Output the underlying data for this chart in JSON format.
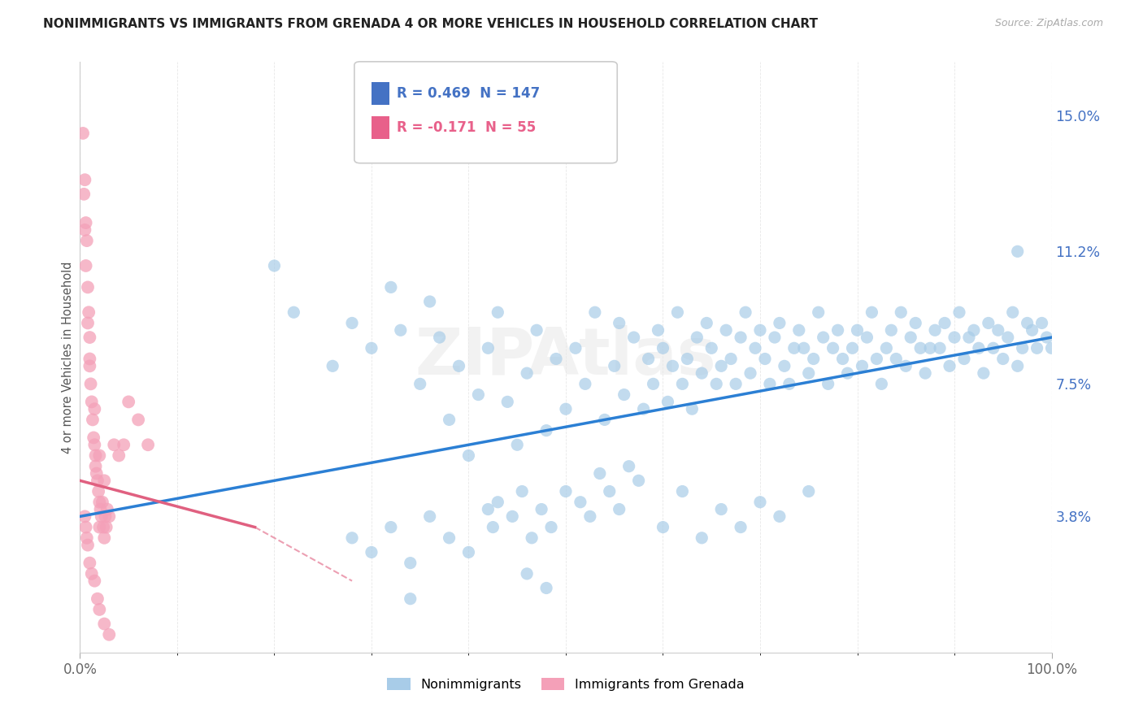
{
  "title": "NONIMMIGRANTS VS IMMIGRANTS FROM GRENADA 4 OR MORE VEHICLES IN HOUSEHOLD CORRELATION CHART",
  "source": "Source: ZipAtlas.com",
  "ylabel": "4 or more Vehicles in Household",
  "xmin": 0.0,
  "xmax": 100.0,
  "ymin": 0.0,
  "ymax": 16.5,
  "right_yticks": [
    3.8,
    7.5,
    11.2,
    15.0
  ],
  "right_yticklabels": [
    "3.8%",
    "7.5%",
    "11.2%",
    "15.0%"
  ],
  "bottom_xticklabels": [
    "0.0%",
    "100.0%"
  ],
  "legend_entries": [
    {
      "label": "Nonimmigrants",
      "color": "#a8cce8"
    },
    {
      "label": "Immigrants from Grenada",
      "color": "#f4a0b8"
    }
  ],
  "corr_R1": "0.469",
  "corr_N1": "147",
  "corr_R2": "-0.171",
  "corr_N2": "55",
  "corr_color1": "#4472c4",
  "corr_color2": "#e8608a",
  "nonimmigrant_color": "#a8cce8",
  "immigrant_color": "#f4a0b8",
  "trend_color_blue": "#2b7fd4",
  "trend_color_pink": "#e06080",
  "blue_trend_x0": 0.0,
  "blue_trend_y0": 3.8,
  "blue_trend_x1": 100.0,
  "blue_trend_y1": 8.8,
  "pink_trend_x0": 0.0,
  "pink_trend_y0": 4.8,
  "pink_trend_x1": 18.0,
  "pink_trend_y1": 3.5,
  "watermark": "ZIPAtlas",
  "grid_color": "#d8d8d8",
  "background_color": "#ffffff",
  "nonimmigrant_points": [
    [
      20.0,
      10.8
    ],
    [
      22.0,
      9.5
    ],
    [
      26.0,
      8.0
    ],
    [
      28.0,
      9.2
    ],
    [
      30.0,
      8.5
    ],
    [
      32.0,
      10.2
    ],
    [
      33.0,
      9.0
    ],
    [
      35.0,
      7.5
    ],
    [
      36.0,
      9.8
    ],
    [
      37.0,
      8.8
    ],
    [
      38.0,
      6.5
    ],
    [
      39.0,
      8.0
    ],
    [
      40.0,
      5.5
    ],
    [
      41.0,
      7.2
    ],
    [
      42.0,
      8.5
    ],
    [
      43.0,
      9.5
    ],
    [
      44.0,
      7.0
    ],
    [
      45.0,
      5.8
    ],
    [
      46.0,
      7.8
    ],
    [
      47.0,
      9.0
    ],
    [
      48.0,
      6.2
    ],
    [
      49.0,
      8.2
    ],
    [
      50.0,
      6.8
    ],
    [
      51.0,
      8.5
    ],
    [
      52.0,
      7.5
    ],
    [
      53.0,
      9.5
    ],
    [
      54.0,
      6.5
    ],
    [
      55.0,
      8.0
    ],
    [
      55.5,
      9.2
    ],
    [
      56.0,
      7.2
    ],
    [
      57.0,
      8.8
    ],
    [
      58.0,
      6.8
    ],
    [
      58.5,
      8.2
    ],
    [
      59.0,
      7.5
    ],
    [
      59.5,
      9.0
    ],
    [
      60.0,
      8.5
    ],
    [
      60.5,
      7.0
    ],
    [
      61.0,
      8.0
    ],
    [
      61.5,
      9.5
    ],
    [
      62.0,
      7.5
    ],
    [
      62.5,
      8.2
    ],
    [
      63.0,
      6.8
    ],
    [
      63.5,
      8.8
    ],
    [
      64.0,
      7.8
    ],
    [
      64.5,
      9.2
    ],
    [
      65.0,
      8.5
    ],
    [
      65.5,
      7.5
    ],
    [
      66.0,
      8.0
    ],
    [
      66.5,
      9.0
    ],
    [
      67.0,
      8.2
    ],
    [
      67.5,
      7.5
    ],
    [
      68.0,
      8.8
    ],
    [
      68.5,
      9.5
    ],
    [
      69.0,
      7.8
    ],
    [
      69.5,
      8.5
    ],
    [
      70.0,
      9.0
    ],
    [
      70.5,
      8.2
    ],
    [
      71.0,
      7.5
    ],
    [
      71.5,
      8.8
    ],
    [
      72.0,
      9.2
    ],
    [
      72.5,
      8.0
    ],
    [
      73.0,
      7.5
    ],
    [
      73.5,
      8.5
    ],
    [
      74.0,
      9.0
    ],
    [
      74.5,
      8.5
    ],
    [
      75.0,
      7.8
    ],
    [
      75.5,
      8.2
    ],
    [
      76.0,
      9.5
    ],
    [
      76.5,
      8.8
    ],
    [
      77.0,
      7.5
    ],
    [
      77.5,
      8.5
    ],
    [
      78.0,
      9.0
    ],
    [
      78.5,
      8.2
    ],
    [
      79.0,
      7.8
    ],
    [
      79.5,
      8.5
    ],
    [
      80.0,
      9.0
    ],
    [
      80.5,
      8.0
    ],
    [
      81.0,
      8.8
    ],
    [
      81.5,
      9.5
    ],
    [
      82.0,
      8.2
    ],
    [
      82.5,
      7.5
    ],
    [
      83.0,
      8.5
    ],
    [
      83.5,
      9.0
    ],
    [
      84.0,
      8.2
    ],
    [
      84.5,
      9.5
    ],
    [
      85.0,
      8.0
    ],
    [
      85.5,
      8.8
    ],
    [
      86.0,
      9.2
    ],
    [
      86.5,
      8.5
    ],
    [
      87.0,
      7.8
    ],
    [
      87.5,
      8.5
    ],
    [
      88.0,
      9.0
    ],
    [
      88.5,
      8.5
    ],
    [
      89.0,
      9.2
    ],
    [
      89.5,
      8.0
    ],
    [
      90.0,
      8.8
    ],
    [
      90.5,
      9.5
    ],
    [
      91.0,
      8.2
    ],
    [
      91.5,
      8.8
    ],
    [
      92.0,
      9.0
    ],
    [
      92.5,
      8.5
    ],
    [
      93.0,
      7.8
    ],
    [
      93.5,
      9.2
    ],
    [
      94.0,
      8.5
    ],
    [
      94.5,
      9.0
    ],
    [
      95.0,
      8.2
    ],
    [
      95.5,
      8.8
    ],
    [
      96.0,
      9.5
    ],
    [
      96.5,
      8.0
    ],
    [
      97.0,
      8.5
    ],
    [
      97.5,
      9.2
    ],
    [
      98.0,
      9.0
    ],
    [
      98.5,
      8.5
    ],
    [
      99.0,
      9.2
    ],
    [
      99.5,
      8.8
    ],
    [
      100.0,
      8.5
    ],
    [
      28.0,
      3.2
    ],
    [
      30.0,
      2.8
    ],
    [
      32.0,
      3.5
    ],
    [
      34.0,
      2.5
    ],
    [
      36.0,
      3.8
    ],
    [
      38.0,
      3.2
    ],
    [
      40.0,
      2.8
    ],
    [
      42.0,
      4.0
    ],
    [
      42.5,
      3.5
    ],
    [
      43.0,
      4.2
    ],
    [
      44.5,
      3.8
    ],
    [
      45.5,
      4.5
    ],
    [
      46.5,
      3.2
    ],
    [
      47.5,
      4.0
    ],
    [
      48.5,
      3.5
    ],
    [
      50.0,
      4.5
    ],
    [
      51.5,
      4.2
    ],
    [
      52.5,
      3.8
    ],
    [
      53.5,
      5.0
    ],
    [
      54.5,
      4.5
    ],
    [
      55.5,
      4.0
    ],
    [
      56.5,
      5.2
    ],
    [
      57.5,
      4.8
    ],
    [
      60.0,
      3.5
    ],
    [
      62.0,
      4.5
    ],
    [
      64.0,
      3.2
    ],
    [
      66.0,
      4.0
    ],
    [
      68.0,
      3.5
    ],
    [
      70.0,
      4.2
    ],
    [
      72.0,
      3.8
    ],
    [
      75.0,
      4.5
    ],
    [
      34.0,
      1.5
    ],
    [
      46.0,
      2.2
    ],
    [
      48.0,
      1.8
    ],
    [
      96.5,
      11.2
    ]
  ],
  "immigrant_points": [
    [
      0.3,
      14.5
    ],
    [
      0.5,
      13.2
    ],
    [
      0.6,
      12.0
    ],
    [
      0.7,
      11.5
    ],
    [
      0.8,
      10.2
    ],
    [
      0.9,
      9.5
    ],
    [
      1.0,
      8.8
    ],
    [
      1.0,
      8.2
    ],
    [
      1.1,
      7.5
    ],
    [
      1.2,
      7.0
    ],
    [
      1.3,
      6.5
    ],
    [
      1.4,
      6.0
    ],
    [
      1.5,
      5.8
    ],
    [
      1.6,
      5.5
    ],
    [
      1.6,
      5.2
    ],
    [
      1.7,
      5.0
    ],
    [
      1.8,
      4.8
    ],
    [
      1.9,
      4.5
    ],
    [
      2.0,
      4.2
    ],
    [
      2.0,
      3.5
    ],
    [
      2.1,
      4.0
    ],
    [
      2.2,
      3.8
    ],
    [
      2.3,
      4.2
    ],
    [
      2.4,
      3.5
    ],
    [
      2.5,
      3.2
    ],
    [
      2.6,
      3.8
    ],
    [
      2.7,
      3.5
    ],
    [
      2.8,
      4.0
    ],
    [
      3.0,
      3.8
    ],
    [
      3.5,
      5.8
    ],
    [
      4.0,
      5.5
    ],
    [
      4.5,
      5.8
    ],
    [
      5.0,
      7.0
    ],
    [
      6.0,
      6.5
    ],
    [
      7.0,
      5.8
    ],
    [
      0.5,
      3.8
    ],
    [
      0.6,
      3.5
    ],
    [
      0.7,
      3.2
    ],
    [
      0.8,
      3.0
    ],
    [
      1.0,
      2.5
    ],
    [
      1.2,
      2.2
    ],
    [
      1.5,
      2.0
    ],
    [
      1.8,
      1.5
    ],
    [
      2.0,
      1.2
    ],
    [
      2.5,
      0.8
    ],
    [
      3.0,
      0.5
    ],
    [
      0.4,
      12.8
    ],
    [
      0.5,
      11.8
    ],
    [
      0.6,
      10.8
    ],
    [
      0.8,
      9.2
    ],
    [
      1.0,
      8.0
    ],
    [
      1.5,
      6.8
    ],
    [
      2.0,
      5.5
    ],
    [
      2.5,
      4.8
    ]
  ]
}
